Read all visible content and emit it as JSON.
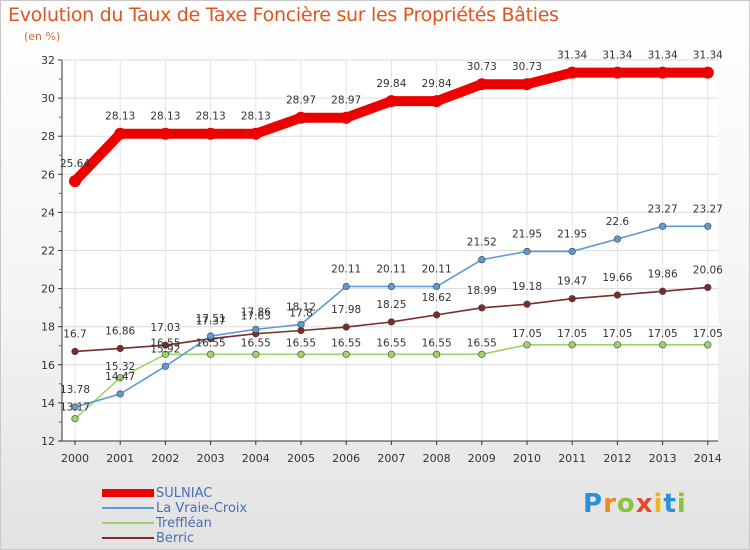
{
  "header": {
    "title": "Evolution du Taux de Taxe Foncière sur les Propriétés Bâties",
    "subtitle": "(en %)"
  },
  "logo": {
    "text": "Proxiti"
  },
  "chart_data": {
    "type": "line",
    "categories": [
      "2000",
      "2001",
      "2002",
      "2003",
      "2004",
      "2005",
      "2006",
      "2007",
      "2008",
      "2009",
      "2010",
      "2011",
      "2012",
      "2013",
      "2014"
    ],
    "ylim": [
      12,
      32
    ],
    "yticks": [
      12,
      14,
      16,
      18,
      20,
      22,
      24,
      26,
      28,
      30,
      32
    ],
    "grid": true,
    "legend_position": "bottom-left",
    "series": [
      {
        "name": "SULNIAC",
        "color": "#ee0000",
        "width": "thick",
        "values": [
          25.64,
          28.13,
          28.13,
          28.13,
          28.13,
          28.97,
          28.97,
          29.84,
          29.84,
          30.73,
          30.73,
          31.34,
          31.34,
          31.34,
          31.34
        ],
        "labels": [
          "25.64",
          "28.13",
          "28.13",
          "28.13",
          "28.13",
          "28.97",
          "28.97",
          "29.84",
          "29.84",
          "30.73",
          "30.73",
          "31.34",
          "31.34",
          "31.34",
          "31.34"
        ]
      },
      {
        "name": "La Vraie-Croix",
        "color": "#5f9ad4",
        "width": "thin",
        "values": [
          13.78,
          14.47,
          15.92,
          17.51,
          17.86,
          18.12,
          20.11,
          20.11,
          20.11,
          21.52,
          21.95,
          21.95,
          22.6,
          23.27,
          23.27
        ],
        "labels": [
          "13.78",
          "14.47",
          "15.92",
          "17.51",
          "17.86",
          "18.12",
          "20.11",
          "20.11",
          "20.11",
          "21.52",
          "21.95",
          "21.95",
          "22.6",
          "23.27",
          "23.27"
        ]
      },
      {
        "name": "Treffléan",
        "color": "#9ed36a",
        "width": "thin",
        "values": [
          13.17,
          15.32,
          16.55,
          16.55,
          16.55,
          16.55,
          16.55,
          16.55,
          16.55,
          16.55,
          17.05,
          17.05,
          17.05,
          17.05,
          17.05
        ],
        "labels": [
          "13.17",
          "15.32",
          "16.55",
          "16.55",
          "16.55",
          "16.55",
          "16.55",
          "16.55",
          "16.55",
          "16.55",
          "17.05",
          "17.05",
          "17.05",
          "17.05",
          "17.05"
        ]
      },
      {
        "name": "Berric",
        "color": "#7a2b2b",
        "width": "thin",
        "values": [
          16.7,
          16.86,
          17.03,
          17.37,
          17.63,
          17.8,
          17.98,
          18.25,
          18.62,
          18.99,
          19.18,
          19.47,
          19.66,
          19.86,
          20.06
        ],
        "labels": [
          "16.7",
          "16.86",
          "17.03",
          "17.37",
          "17.63",
          "17.8",
          "17.98",
          "18.25",
          "18.62",
          "18.99",
          "19.18",
          "19.47",
          "19.66",
          "19.86",
          "20.06"
        ]
      }
    ]
  }
}
